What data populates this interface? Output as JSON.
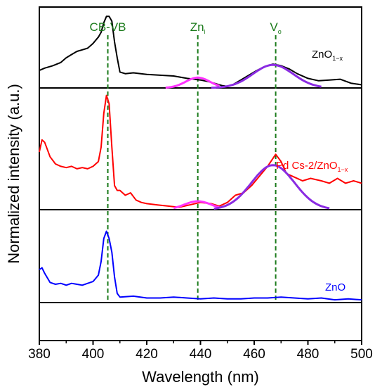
{
  "chart_data": {
    "type": "line",
    "xlabel": "Wavelength (nm)",
    "ylabel": "Normalized intensity (a.u.)",
    "xlim": [
      380,
      500
    ],
    "xticks": [
      380,
      400,
      420,
      440,
      460,
      480,
      500
    ],
    "panels": [
      {
        "name_main": "ZnO",
        "name_sub": "1−x",
        "color": "#000000",
        "fit_color_a": "#ff33ff",
        "fit_color_b": "#8a2be2",
        "spectrum": [
          [
            380,
            0.22
          ],
          [
            382,
            0.25
          ],
          [
            385,
            0.28
          ],
          [
            388,
            0.32
          ],
          [
            390,
            0.38
          ],
          [
            392,
            0.42
          ],
          [
            394,
            0.46
          ],
          [
            396,
            0.48
          ],
          [
            398,
            0.5
          ],
          [
            400,
            0.56
          ],
          [
            402,
            0.64
          ],
          [
            403,
            0.7
          ],
          [
            404,
            0.82
          ],
          [
            405,
            0.9
          ],
          [
            406,
            0.9
          ],
          [
            407,
            0.84
          ],
          [
            408,
            0.58
          ],
          [
            409,
            0.38
          ],
          [
            410,
            0.2
          ],
          [
            412,
            0.18
          ],
          [
            415,
            0.19
          ],
          [
            420,
            0.17
          ],
          [
            425,
            0.16
          ],
          [
            430,
            0.15
          ],
          [
            435,
            0.12
          ],
          [
            440,
            0.1
          ],
          [
            443,
            0.08
          ],
          [
            446,
            0.05
          ],
          [
            448,
            0.03
          ],
          [
            450,
            0.02
          ],
          [
            452,
            0.04
          ],
          [
            455,
            0.1
          ],
          [
            458,
            0.16
          ],
          [
            461,
            0.22
          ],
          [
            464,
            0.27
          ],
          [
            467,
            0.3
          ],
          [
            470,
            0.28
          ],
          [
            473,
            0.24
          ],
          [
            476,
            0.18
          ],
          [
            480,
            0.12
          ],
          [
            484,
            0.09
          ],
          [
            488,
            0.1
          ],
          [
            492,
            0.11
          ],
          [
            496,
            0.06
          ],
          [
            500,
            0.04
          ]
        ],
        "fit_a": {
          "center": 439,
          "height": 0.13,
          "width": 4.5,
          "baseline": 0.0,
          "range": [
            427,
            447
          ]
        },
        "fit_b": {
          "center": 467,
          "height": 0.29,
          "width": 7.5,
          "baseline": 0.0,
          "range": [
            444,
            485
          ]
        }
      },
      {
        "name_main": "Pd Cs-2/ZnO",
        "name_sub": "1−x",
        "color": "#ff0000",
        "fit_color_a": "#ff33ff",
        "fit_color_b": "#8a2be2",
        "spectrum": [
          [
            380,
            0.48
          ],
          [
            381,
            0.58
          ],
          [
            382,
            0.56
          ],
          [
            384,
            0.44
          ],
          [
            386,
            0.38
          ],
          [
            388,
            0.36
          ],
          [
            390,
            0.35
          ],
          [
            392,
            0.36
          ],
          [
            394,
            0.34
          ],
          [
            396,
            0.35
          ],
          [
            398,
            0.34
          ],
          [
            400,
            0.36
          ],
          [
            402,
            0.4
          ],
          [
            403,
            0.52
          ],
          [
            404,
            0.8
          ],
          [
            405,
            0.95
          ],
          [
            406,
            0.88
          ],
          [
            407,
            0.52
          ],
          [
            408,
            0.2
          ],
          [
            409,
            0.16
          ],
          [
            410,
            0.16
          ],
          [
            412,
            0.12
          ],
          [
            414,
            0.14
          ],
          [
            416,
            0.08
          ],
          [
            418,
            0.06
          ],
          [
            420,
            0.05
          ],
          [
            424,
            0.04
          ],
          [
            428,
            0.03
          ],
          [
            432,
            0.02
          ],
          [
            436,
            0.04
          ],
          [
            440,
            0.06
          ],
          [
            444,
            0.05
          ],
          [
            447,
            0.03
          ],
          [
            450,
            0.06
          ],
          [
            453,
            0.12
          ],
          [
            456,
            0.14
          ],
          [
            459,
            0.2
          ],
          [
            462,
            0.28
          ],
          [
            465,
            0.36
          ],
          [
            468,
            0.46
          ],
          [
            470,
            0.4
          ],
          [
            472,
            0.3
          ],
          [
            475,
            0.27
          ],
          [
            478,
            0.24
          ],
          [
            481,
            0.26
          ],
          [
            485,
            0.24
          ],
          [
            488,
            0.22
          ],
          [
            491,
            0.26
          ],
          [
            494,
            0.22
          ],
          [
            497,
            0.24
          ],
          [
            500,
            0.22
          ]
        ],
        "fit_a": {
          "center": 439,
          "height": 0.07,
          "width": 5,
          "baseline": 0.0,
          "range": [
            430,
            447
          ]
        },
        "fit_b": {
          "center": 467,
          "height": 0.37,
          "width": 8,
          "baseline": 0.0,
          "range": [
            445,
            488
          ]
        }
      },
      {
        "name_main": "ZnO",
        "name_sub": "",
        "color": "#0000ff",
        "spectrum": [
          [
            380,
            0.36
          ],
          [
            381,
            0.38
          ],
          [
            382,
            0.32
          ],
          [
            384,
            0.22
          ],
          [
            386,
            0.2
          ],
          [
            388,
            0.21
          ],
          [
            390,
            0.19
          ],
          [
            392,
            0.21
          ],
          [
            394,
            0.2
          ],
          [
            396,
            0.19
          ],
          [
            398,
            0.21
          ],
          [
            400,
            0.23
          ],
          [
            402,
            0.3
          ],
          [
            403,
            0.45
          ],
          [
            404,
            0.7
          ],
          [
            405,
            0.78
          ],
          [
            406,
            0.7
          ],
          [
            407,
            0.55
          ],
          [
            408,
            0.28
          ],
          [
            409,
            0.1
          ],
          [
            410,
            0.06
          ],
          [
            415,
            0.07
          ],
          [
            420,
            0.05
          ],
          [
            425,
            0.05
          ],
          [
            430,
            0.06
          ],
          [
            435,
            0.05
          ],
          [
            440,
            0.04
          ],
          [
            445,
            0.05
          ],
          [
            450,
            0.04
          ],
          [
            455,
            0.04
          ],
          [
            460,
            0.05
          ],
          [
            465,
            0.05
          ],
          [
            470,
            0.06
          ],
          [
            475,
            0.05
          ],
          [
            480,
            0.04
          ],
          [
            485,
            0.05
          ],
          [
            490,
            0.03
          ],
          [
            495,
            0.04
          ],
          [
            500,
            0.03
          ]
        ]
      }
    ],
    "annotations": [
      {
        "text": "CB-VB",
        "sub": "",
        "x": 405.5
      },
      {
        "text": "Zn",
        "sub": "i",
        "x": 439
      },
      {
        "text": "V",
        "sub": "o",
        "x": 468
      }
    ],
    "annotation_color": "#1a7a1a"
  }
}
